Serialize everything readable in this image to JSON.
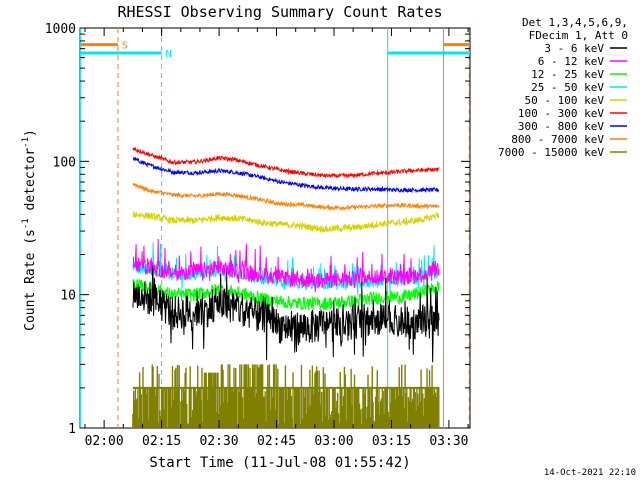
{
  "chart_data": {
    "type": "line",
    "title": "RHESSI Observing Summary Count Rates",
    "xlabel": "Start Time (11-Jul-08 01:55:42)",
    "ylabel_main": "Count Rate (s",
    "ylabel_sup1": "-1",
    "ylabel_mid": " detector",
    "ylabel_sup2": "-1",
    "ylabel_end": ")",
    "y_scale": "log",
    "ylim": [
      1,
      1000
    ],
    "xlim_minutes": [
      -6.3,
      95.5
    ],
    "x_ticks": [
      {
        "label": "02:00",
        "minutes": 0
      },
      {
        "label": "02:15",
        "minutes": 15
      },
      {
        "label": "02:30",
        "minutes": 30
      },
      {
        "label": "02:45",
        "minutes": 45
      },
      {
        "label": "03:00",
        "minutes": 60
      },
      {
        "label": "03:15",
        "minutes": 75
      },
      {
        "label": "03:30",
        "minutes": 90
      }
    ],
    "y_ticks": [
      {
        "label": "1",
        "value": 1
      },
      {
        "label": "10",
        "value": 10
      },
      {
        "label": "100",
        "value": 100
      },
      {
        "label": "1000",
        "value": 1000
      }
    ],
    "legend_header": [
      "Det 1,3,4,5,6,9,",
      "FDecim 1, Att 0"
    ],
    "legend_position": "right",
    "series": [
      {
        "name": "3 - 6 keV",
        "color": "#000000",
        "start_min": 7.5,
        "end_min": 87.5,
        "profile": [
          [
            7.5,
            10
          ],
          [
            10,
            9.6
          ],
          [
            14,
            9.0
          ],
          [
            18,
            7.2
          ],
          [
            22,
            7.6
          ],
          [
            26,
            7.5
          ],
          [
            30,
            8.5
          ],
          [
            34,
            8.2
          ],
          [
            38,
            7.4
          ],
          [
            42,
            6.5
          ],
          [
            46,
            5.8
          ],
          [
            50,
            5.6
          ],
          [
            54,
            5.7
          ],
          [
            58,
            6.0
          ],
          [
            62,
            5.9
          ],
          [
            66,
            6.3
          ],
          [
            70,
            6.5
          ],
          [
            74,
            6.4
          ],
          [
            78,
            6.0
          ],
          [
            82,
            6.2
          ],
          [
            86,
            6.5
          ],
          [
            87.5,
            6.5
          ]
        ],
        "noise": 0.13
      },
      {
        "name": "6 - 12 keV",
        "color": "#ff00ff",
        "start_min": 7.5,
        "end_min": 87.5,
        "profile": [
          [
            7.5,
            17
          ],
          [
            12,
            16
          ],
          [
            18,
            14.5
          ],
          [
            24,
            15
          ],
          [
            30,
            15.8
          ],
          [
            36,
            15
          ],
          [
            42,
            14
          ],
          [
            50,
            13
          ],
          [
            58,
            12.8
          ],
          [
            66,
            13.2
          ],
          [
            72,
            13.8
          ],
          [
            78,
            13.5
          ],
          [
            84,
            14.5
          ],
          [
            87.5,
            16
          ]
        ],
        "noise": 0.06
      },
      {
        "name": "12 - 25 keV",
        "color": "#00ff00",
        "start_min": 7.5,
        "end_min": 87.5,
        "profile": [
          [
            7.5,
            12
          ],
          [
            12,
            11.2
          ],
          [
            18,
            10
          ],
          [
            24,
            10
          ],
          [
            30,
            11
          ],
          [
            36,
            10.2
          ],
          [
            42,
            9.2
          ],
          [
            50,
            8.6
          ],
          [
            58,
            8.6
          ],
          [
            66,
            9.0
          ],
          [
            72,
            9.6
          ],
          [
            78,
            9.6
          ],
          [
            84,
            10.6
          ],
          [
            87.5,
            11.5
          ]
        ],
        "noise": 0.05
      },
      {
        "name": "25 - 50 keV",
        "color": "#00e5ff",
        "start_min": 7.5,
        "end_min": 87.5,
        "profile": [
          [
            7.5,
            16
          ],
          [
            12,
            15.5
          ],
          [
            18,
            14
          ],
          [
            24,
            14
          ],
          [
            30,
            15
          ],
          [
            36,
            14.2
          ],
          [
            42,
            13
          ],
          [
            50,
            12.2
          ],
          [
            58,
            12
          ],
          [
            66,
            12.3
          ],
          [
            72,
            12.6
          ],
          [
            78,
            12.6
          ],
          [
            84,
            13.5
          ],
          [
            87.5,
            15
          ]
        ],
        "noise": 0.04
      },
      {
        "name": "50 - 100 keV",
        "color": "#d4d400",
        "start_min": 7.5,
        "end_min": 87.5,
        "profile": [
          [
            7.5,
            40
          ],
          [
            12,
            39
          ],
          [
            18,
            36
          ],
          [
            24,
            36
          ],
          [
            30,
            38
          ],
          [
            36,
            37
          ],
          [
            42,
            34.5
          ],
          [
            50,
            33
          ],
          [
            58,
            31
          ],
          [
            66,
            32
          ],
          [
            72,
            34
          ],
          [
            78,
            35
          ],
          [
            84,
            37
          ],
          [
            87.5,
            40
          ]
        ],
        "noise": 0.025
      },
      {
        "name": "100 - 300 keV",
        "color": "#ff0000",
        "start_min": 7.5,
        "end_min": 87.5,
        "profile": [
          [
            7.5,
            125
          ],
          [
            12,
            112
          ],
          [
            18,
            98
          ],
          [
            24,
            99
          ],
          [
            30,
            106
          ],
          [
            34,
            103
          ],
          [
            40,
            94
          ],
          [
            46,
            86
          ],
          [
            52,
            81
          ],
          [
            58,
            78
          ],
          [
            64,
            78
          ],
          [
            70,
            81
          ],
          [
            76,
            83
          ],
          [
            80,
            85
          ],
          [
            84,
            86
          ],
          [
            87.5,
            87
          ]
        ],
        "noise": 0.015
      },
      {
        "name": "300 - 800 keV",
        "color": "#0000ff",
        "start_min": 7.5,
        "end_min": 87.5,
        "profile": [
          [
            7.5,
            105
          ],
          [
            12,
            93
          ],
          [
            18,
            83
          ],
          [
            24,
            82
          ],
          [
            30,
            85
          ],
          [
            34,
            83
          ],
          [
            40,
            77
          ],
          [
            46,
            70
          ],
          [
            52,
            66
          ],
          [
            58,
            63
          ],
          [
            64,
            62
          ],
          [
            70,
            62
          ],
          [
            76,
            61
          ],
          [
            84,
            61
          ],
          [
            87.5,
            61
          ]
        ],
        "noise": 0.015
      },
      {
        "name": "800 - 7000 keV",
        "color": "#ff8000",
        "start_min": 7.5,
        "end_min": 87.5,
        "profile": [
          [
            7.5,
            68
          ],
          [
            12,
            60
          ],
          [
            18,
            56
          ],
          [
            24,
            55
          ],
          [
            30,
            57
          ],
          [
            34,
            56
          ],
          [
            40,
            52
          ],
          [
            46,
            48
          ],
          [
            52,
            47
          ],
          [
            58,
            45
          ],
          [
            64,
            45
          ],
          [
            70,
            46
          ],
          [
            76,
            47
          ],
          [
            84,
            46
          ],
          [
            87.5,
            46
          ]
        ],
        "noise": 0.015
      },
      {
        "name": "7000 - 15000 keV",
        "color": "#808000",
        "start_min": 7.5,
        "end_min": 87.5,
        "profile": [
          [
            7.5,
            2
          ],
          [
            87.5,
            2
          ]
        ],
        "noise": 0
      }
    ],
    "state_bars": [
      {
        "label": "S",
        "color": "#ff8000",
        "value": 750,
        "ranges": [
          [
            -6.3,
            3.6
          ],
          [
            88.6,
            95.5
          ]
        ]
      },
      {
        "label": "N",
        "color": "#00e5ff",
        "value": 650,
        "ranges": [
          [
            -6.3,
            15.0
          ],
          [
            74.0,
            95.5
          ]
        ]
      }
    ],
    "vertical_lines": [
      {
        "minutes": 3.6,
        "color": "#ff8000",
        "style": "dashed"
      },
      {
        "minutes": 15.0,
        "color": "#00e5ff",
        "style": "dashed"
      },
      {
        "minutes": 74.0,
        "color": "#00e5ff",
        "style": "solid"
      },
      {
        "minutes": 88.6,
        "color": "#ff8000",
        "style": "solid"
      },
      {
        "minutes": 95.3,
        "color": "#ff8000",
        "style": "dashed"
      },
      {
        "minutes": -6.2,
        "color": "#00e5ff",
        "style": "solid"
      }
    ],
    "timestamp": "14-Oct-2021 22:10"
  }
}
